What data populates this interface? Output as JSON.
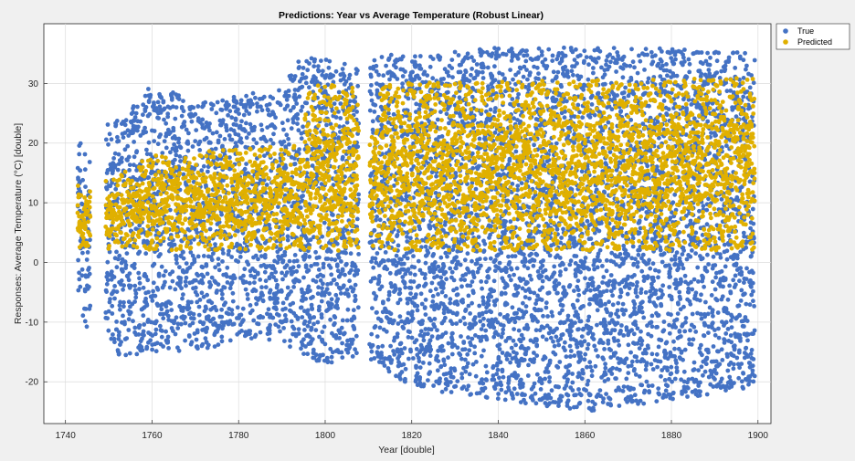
{
  "chart_data": {
    "type": "scatter",
    "title": "Predictions: Year vs Average Temperature (Robust Linear)",
    "xlabel": "Year [double]",
    "ylabel": "Responses: Average Temperature (°C) [double]",
    "xlim": [
      1735,
      1903
    ],
    "ylim": [
      -27,
      40
    ],
    "xticks": [
      1740,
      1760,
      1780,
      1800,
      1820,
      1840,
      1860,
      1880,
      1900
    ],
    "yticks": [
      -20,
      -10,
      0,
      10,
      20,
      30
    ],
    "grid": true,
    "legend_position": "outside-top-right",
    "series": [
      {
        "name": "True",
        "color": "#4472c4",
        "envelope": [
          {
            "x": 1743,
            "ymin": -8,
            "ymax": 22
          },
          {
            "x": 1745,
            "ymin": -11,
            "ymax": 17
          },
          {
            "x": 1750,
            "ymin": -13,
            "ymax": 24
          },
          {
            "x": 1752,
            "ymin": -16,
            "ymax": 24
          },
          {
            "x": 1760,
            "ymin": -15,
            "ymax": 30
          },
          {
            "x": 1770,
            "ymin": -15,
            "ymax": 27
          },
          {
            "x": 1780,
            "ymin": -13,
            "ymax": 28
          },
          {
            "x": 1790,
            "ymin": -13,
            "ymax": 29
          },
          {
            "x": 1795,
            "ymin": -16,
            "ymax": 35
          },
          {
            "x": 1800,
            "ymin": -17,
            "ymax": 34
          },
          {
            "x": 1807,
            "ymin": -16,
            "ymax": 33
          },
          {
            "x": 1812,
            "ymin": -17,
            "ymax": 35
          },
          {
            "x": 1820,
            "ymin": -21,
            "ymax": 35
          },
          {
            "x": 1840,
            "ymin": -23,
            "ymax": 36
          },
          {
            "x": 1860,
            "ymin": -25,
            "ymax": 36
          },
          {
            "x": 1880,
            "ymin": -23,
            "ymax": 36
          },
          {
            "x": 1899,
            "ymin": -21,
            "ymax": 35
          }
        ]
      },
      {
        "name": "Predicted",
        "color": "#e0b000",
        "envelope": [
          {
            "x": 1743,
            "ymin": 2,
            "ymax": 13
          },
          {
            "x": 1745,
            "ymin": 2,
            "ymax": 12
          },
          {
            "x": 1750,
            "ymin": 2,
            "ymax": 14
          },
          {
            "x": 1760,
            "ymin": 2,
            "ymax": 18
          },
          {
            "x": 1780,
            "ymin": 2,
            "ymax": 19
          },
          {
            "x": 1795,
            "ymin": 2,
            "ymax": 20
          },
          {
            "x": 1796,
            "ymin": 2,
            "ymax": 30
          },
          {
            "x": 1807,
            "ymin": 2,
            "ymax": 30
          },
          {
            "x": 1808,
            "ymin": 2,
            "ymax": 23
          },
          {
            "x": 1812,
            "ymin": 2,
            "ymax": 23
          },
          {
            "x": 1813,
            "ymin": 2,
            "ymax": 30
          },
          {
            "x": 1899,
            "ymin": 2,
            "ymax": 31
          }
        ]
      }
    ]
  }
}
